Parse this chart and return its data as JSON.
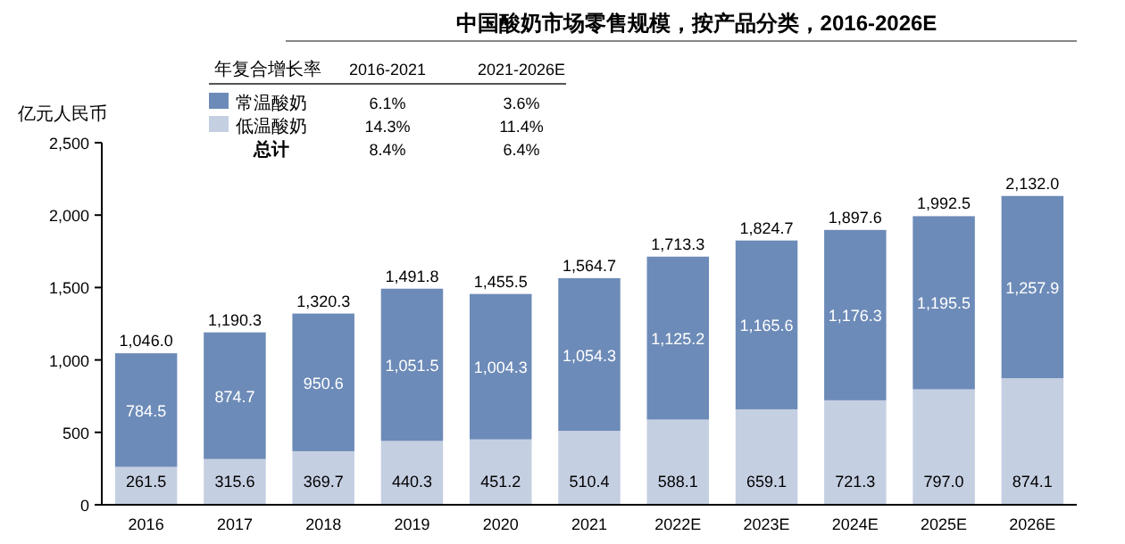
{
  "chart_data": {
    "type": "bar",
    "stacked": true,
    "title": "中国酸奶市场零售规模，按产品分类，2016-2026E",
    "ylabel": "亿元人民币",
    "categories": [
      "2016",
      "2017",
      "2018",
      "2019",
      "2020",
      "2021",
      "2022E",
      "2023E",
      "2024E",
      "2025E",
      "2026E"
    ],
    "series": [
      {
        "name": "低温酸奶",
        "color": "#c5cfe2",
        "values": [
          261.5,
          315.6,
          369.7,
          440.3,
          451.2,
          510.4,
          588.1,
          659.1,
          721.3,
          797.0,
          874.1
        ],
        "value_labels": [
          "261.5",
          "315.6",
          "369.7",
          "440.3",
          "451.2",
          "510.4",
          "588.1",
          "659.1",
          "721.3",
          "797.0",
          "874.1"
        ]
      },
      {
        "name": "常温酸奶",
        "color": "#6d8bb8",
        "values": [
          784.5,
          874.7,
          950.6,
          1051.5,
          1004.3,
          1054.3,
          1125.2,
          1165.6,
          1176.3,
          1195.5,
          1257.9
        ],
        "value_labels": [
          "784.5",
          "874.7",
          "950.6",
          "1,051.5",
          "1,004.3",
          "1,054.3",
          "1,125.2",
          "1,165.6",
          "1,176.3",
          "1,195.5",
          "1,257.9"
        ]
      }
    ],
    "totals": [
      "1,046.0",
      "1,190.3",
      "1,320.3",
      "1,491.8",
      "1,455.5",
      "1,564.7",
      "1,713.3",
      "1,824.7",
      "1,897.6",
      "1,992.5",
      "2,132.0"
    ],
    "ylim": [
      0,
      2500
    ],
    "yticks": [
      {
        "value": 0,
        "label": "0"
      },
      {
        "value": 500,
        "label": "500"
      },
      {
        "value": 1000,
        "label": "1,000"
      },
      {
        "value": 1500,
        "label": "1,500"
      },
      {
        "value": 2000,
        "label": "2,000"
      },
      {
        "value": 2500,
        "label": "2,500"
      }
    ],
    "legend": "top left",
    "grid": false,
    "annotations": [
      "年复合增长率",
      "2016-2021",
      "2021-2026E",
      "6.1%",
      "3.6%",
      "14.3%",
      "11.4%",
      "总计",
      "8.4%",
      "6.4%"
    ]
  }
}
